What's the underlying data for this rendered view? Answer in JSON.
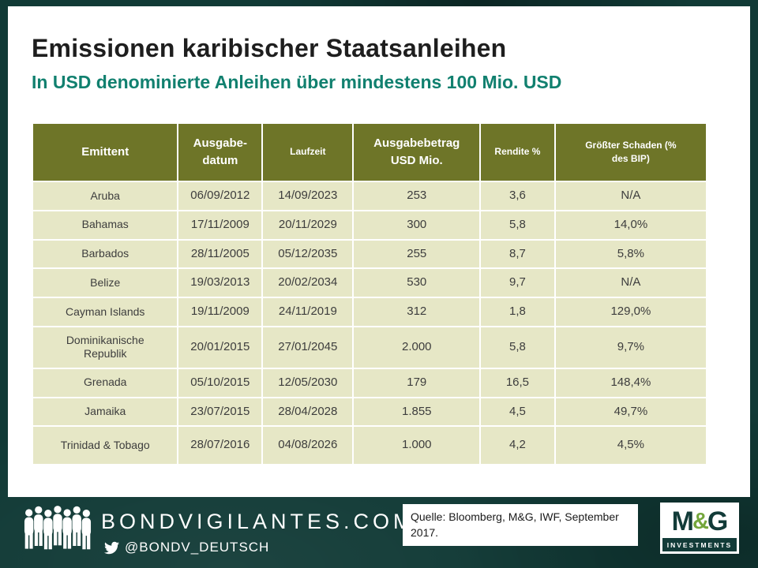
{
  "header": {
    "title": "Emissionen karibischer Staatsanleihen",
    "subtitle": "In USD denominierte Anleihen über mindestens 100 Mio. USD"
  },
  "table": {
    "headers": [
      "Emittent",
      "Ausgabe-\ndatum",
      "Laufzeit",
      "Ausgabebetrag\nUSD Mio.",
      "Rendite %",
      "Größter Schaden (%\ndes BIP)"
    ],
    "rows": [
      [
        "Aruba",
        "06/09/2012",
        "14/09/2023",
        "253",
        "3,6",
        "N/A"
      ],
      [
        "Bahamas",
        "17/11/2009",
        "20/11/2029",
        "300",
        "5,8",
        "14,0%"
      ],
      [
        "Barbados",
        "28/11/2005",
        "05/12/2035",
        "255",
        "8,7",
        "5,8%"
      ],
      [
        "Belize",
        "19/03/2013",
        "20/02/2034",
        "530",
        "9,7",
        "N/A"
      ],
      [
        "Cayman Islands",
        "19/11/2009",
        "24/11/2019",
        "312",
        "1,8",
        "129,0%"
      ],
      [
        "Dominikanische\nRepublik",
        "20/01/2015",
        "27/01/2045",
        "2.000",
        "5,8",
        "9,7%"
      ],
      [
        "Grenada",
        "05/10/2015",
        "12/05/2030",
        "179",
        "16,5",
        "148,4%"
      ],
      [
        "Jamaika",
        "23/07/2015",
        "28/04/2028",
        "1.855",
        "4,5",
        "49,7%"
      ],
      [
        "Trinidad & Tobago",
        "28/07/2016",
        "04/08/2026",
        "1.000",
        "4,2",
        "4,5%"
      ]
    ]
  },
  "footer": {
    "site": "BONDVIGILANTES.COM",
    "twitter_handle": "@BONDV_DEUTSCH",
    "source": "Quelle: Bloomberg, M&G, IWF, September 2017.",
    "logo": {
      "m": "M",
      "amp": "&",
      "g": "G",
      "sub": "INVESTMENTS"
    }
  },
  "colors": {
    "background": "#113A36",
    "subtitle_teal": "#11806F",
    "table_header_olive": "#6E7528",
    "table_row_khaki": "#E6E7C6",
    "logo_green": "#74A63C",
    "logo_dark": "#123B38"
  }
}
